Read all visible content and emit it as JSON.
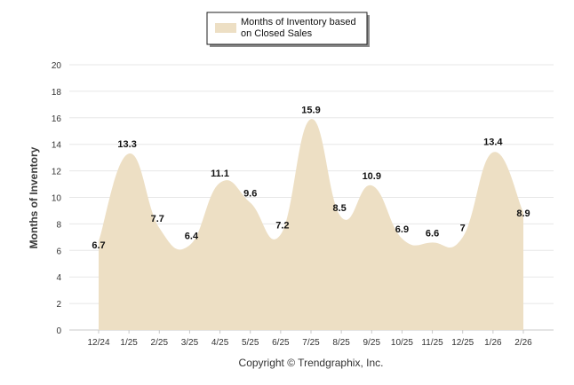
{
  "chart_data": {
    "type": "area",
    "title": "",
    "xlabel": "",
    "ylabel": "Months of Inventory",
    "ylim": [
      0,
      20
    ],
    "yticks": [
      0,
      2,
      4,
      6,
      8,
      10,
      12,
      14,
      16,
      18,
      20
    ],
    "grid": true,
    "legend_position": "top-center",
    "categories": [
      "12/24",
      "1/25",
      "2/25",
      "3/25",
      "4/25",
      "5/25",
      "6/25",
      "7/25",
      "8/25",
      "9/25",
      "10/25",
      "11/25",
      "12/25",
      "1/26",
      "2/26"
    ],
    "series": [
      {
        "name": "Months of Inventory based on Closed Sales",
        "legend_lines": [
          "Months of Inventory based",
          "on Closed Sales"
        ],
        "color": "#eddfc4",
        "values": [
          6.7,
          13.3,
          7.7,
          6.4,
          11.1,
          9.6,
          7.2,
          15.9,
          8.5,
          10.9,
          6.9,
          6.6,
          7,
          13.4,
          8.9
        ],
        "labels": [
          "6.7",
          "13.3",
          "7.7",
          "6.4",
          "11.1",
          "9.6",
          "7.2",
          "15.9",
          "8.5",
          "10.9",
          "6.9",
          "6.6",
          "7",
          "13.4",
          "8.9"
        ]
      }
    ],
    "footer": "Copyright © Trendgraphix, Inc."
  }
}
